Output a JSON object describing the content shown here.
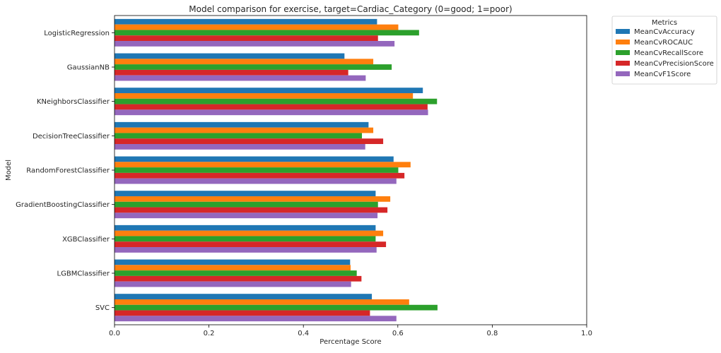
{
  "chart_data": {
    "type": "bar",
    "orientation": "horizontal",
    "title": "Model comparison for exercise, target=Cardiac_Category (0=good; 1=poor)",
    "xlabel": "Percentage Score",
    "ylabel": "Model",
    "xlim": [
      0,
      1.0
    ],
    "xticks": [
      "0.0",
      "0.2",
      "0.4",
      "0.6",
      "0.8",
      "1.0"
    ],
    "grid": false,
    "legend": {
      "title": "Metrics",
      "placement": "outside-top-right"
    },
    "categories": [
      "LogisticRegression",
      "GaussianNB",
      "KNeighborsClassifier",
      "DecisionTreeClassifier",
      "RandomForestClassifier",
      "GradientBoostingClassifier",
      "XGBClassifier",
      "LGBMClassifier",
      "SVC"
    ],
    "series": [
      {
        "name": "MeanCvAccuracy",
        "color": "#1f77b4",
        "values": [
          0.556,
          0.487,
          0.653,
          0.538,
          0.591,
          0.553,
          0.553,
          0.499,
          0.545
        ]
      },
      {
        "name": "MeanCvROCAUC",
        "color": "#ff7f0e",
        "values": [
          0.601,
          0.548,
          0.632,
          0.548,
          0.627,
          0.584,
          0.569,
          0.5,
          0.624
        ]
      },
      {
        "name": "MeanCvRecallScore",
        "color": "#2ca02c",
        "values": [
          0.645,
          0.587,
          0.683,
          0.524,
          0.601,
          0.558,
          0.553,
          0.513,
          0.684
        ]
      },
      {
        "name": "MeanCvPrecisionScore",
        "color": "#d62728",
        "values": [
          0.558,
          0.495,
          0.663,
          0.569,
          0.614,
          0.578,
          0.575,
          0.523,
          0.541
        ]
      },
      {
        "name": "MeanCvF1Score",
        "color": "#9467bd",
        "values": [
          0.593,
          0.532,
          0.664,
          0.531,
          0.597,
          0.557,
          0.555,
          0.501,
          0.597
        ]
      }
    ]
  }
}
